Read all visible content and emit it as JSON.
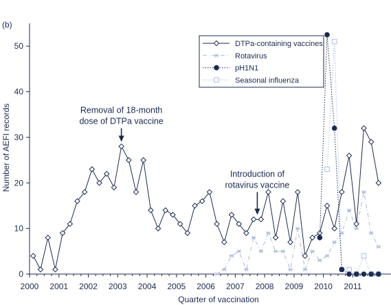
{
  "chart_data": {
    "type": "line",
    "panel_label": "(b)",
    "xlabel": "Quarter of vaccination",
    "ylabel": "Number of AEFI records",
    "xlim": [
      2000,
      2012.3
    ],
    "ylim": [
      0,
      55
    ],
    "x_ticks": [
      2000,
      2001,
      2002,
      2003,
      2004,
      2005,
      2006,
      2007,
      2008,
      2009,
      2010,
      2011
    ],
    "x_tick_labels": [
      "2000",
      "2001",
      "2002",
      "2003",
      "2004",
      "2005",
      "2006",
      "2007",
      "2008",
      "2009",
      "2010",
      "2011"
    ],
    "y_ticks": [
      0,
      10,
      20,
      30,
      40,
      50
    ],
    "y_tick_labels": [
      "0",
      "10",
      "20",
      "30",
      "40",
      "50"
    ],
    "grid": false,
    "legend_position": "top-right",
    "series": [
      {
        "name": "DTPa-containing vaccines",
        "color": "#1a2a4f",
        "line": "solid",
        "marker": "diamond",
        "x": [
          2000.125,
          2000.375,
          2000.625,
          2000.875,
          2001.125,
          2001.375,
          2001.625,
          2001.875,
          2002.125,
          2002.375,
          2002.625,
          2002.875,
          2003.125,
          2003.375,
          2003.625,
          2003.875,
          2004.125,
          2004.375,
          2004.625,
          2004.875,
          2005.125,
          2005.375,
          2005.625,
          2005.875,
          2006.125,
          2006.375,
          2006.625,
          2006.875,
          2007.125,
          2007.375,
          2007.625,
          2007.875,
          2008.125,
          2008.375,
          2008.625,
          2008.875,
          2009.125,
          2009.375,
          2009.625,
          2009.875,
          2010.125,
          2010.375,
          2010.625,
          2010.875,
          2011.125,
          2011.375,
          2011.625,
          2011.875
        ],
        "values": [
          4,
          1,
          8,
          1,
          9,
          11,
          16,
          18,
          23,
          20,
          22,
          19,
          28,
          25,
          18,
          25,
          14,
          10,
          14,
          13,
          11,
          9,
          15,
          16,
          18,
          11,
          7,
          13,
          11,
          9,
          12,
          12,
          18,
          8,
          16,
          7,
          18,
          4,
          8,
          9,
          15,
          10,
          18,
          26,
          11,
          32,
          29,
          20
        ]
      },
      {
        "name": "Rotavirus",
        "color": "#a9b8d6",
        "line": "dashdot",
        "marker": "asterisk",
        "x": [
          2006.375,
          2006.625,
          2006.875,
          2007.125,
          2007.375,
          2007.625,
          2007.875,
          2008.125,
          2008.375,
          2008.625,
          2008.875,
          2009.125,
          2009.375,
          2009.625,
          2009.875,
          2010.125,
          2010.375,
          2010.625,
          2010.875,
          2011.125,
          2011.375,
          2011.625,
          2011.875
        ],
        "values": [
          0,
          1,
          4,
          5,
          1,
          8,
          5,
          9,
          5,
          5,
          1,
          10,
          1,
          5,
          3,
          4,
          7,
          9,
          14,
          10,
          18,
          9,
          6
        ]
      },
      {
        "name": "pH1N1",
        "color": "#1a2a4f",
        "line": "dotted",
        "marker": "circle",
        "x": [
          2009.875,
          2010.125,
          2010.375,
          2010.625,
          2010.875,
          2011.125,
          2011.375,
          2011.625,
          2011.875
        ],
        "values": [
          8,
          52.5,
          32,
          1,
          0,
          0,
          0,
          0,
          0
        ]
      },
      {
        "name": "Seasonal influenza",
        "color": "#a9c0e4",
        "line": "dotted",
        "marker": "square",
        "x": [
          2010.125,
          2010.375,
          2010.625,
          2010.875,
          2011.125,
          2011.375,
          2011.625,
          2011.875
        ],
        "values": [
          23,
          51,
          1,
          1,
          0,
          4,
          0,
          0
        ]
      }
    ],
    "annotations": [
      {
        "id": "dtpa",
        "lines": [
          "Removal of 18-month",
          "dose of DTPa vaccine"
        ],
        "arrow_x": 2003.125,
        "arrow_y_from": 32,
        "arrow_y_to": 29
      },
      {
        "id": "rota",
        "lines": [
          "Introduction of",
          "rotavirus vaccine"
        ],
        "arrow_x": 2007.75,
        "arrow_y_from": 18,
        "arrow_y_to": 13
      }
    ]
  }
}
